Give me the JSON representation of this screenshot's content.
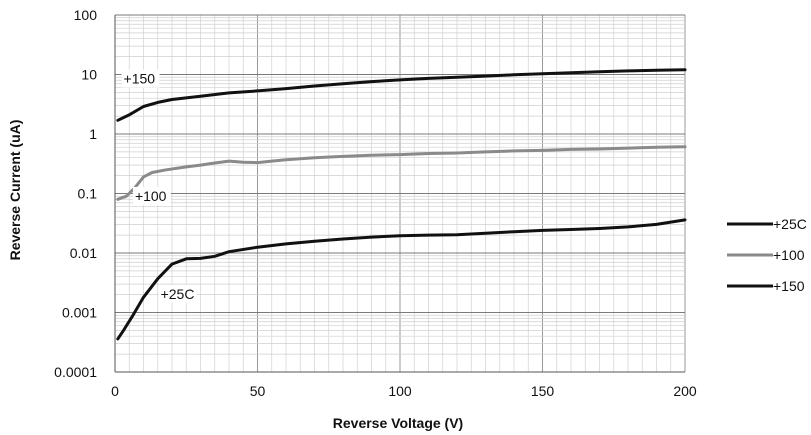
{
  "chart_data": {
    "type": "line",
    "xlabel": "Reverse Voltage (V)",
    "ylabel": "Reverse Current (uA)",
    "x_scale": "linear",
    "y_scale": "log",
    "xlim": [
      0,
      200
    ],
    "ylim": [
      0.0001,
      100
    ],
    "x_ticks": [
      "0",
      "50",
      "100",
      "150",
      "200"
    ],
    "y_ticks": [
      "0.0001",
      "0.001",
      "0.01",
      "0.1",
      "1",
      "10",
      "100"
    ],
    "grid": true,
    "legend_position": "right",
    "series": [
      {
        "name": "+25C",
        "color": "#111111",
        "points": [
          [
            1,
            0.00036
          ],
          [
            3,
            0.0005
          ],
          [
            6,
            0.00085
          ],
          [
            10,
            0.0018
          ],
          [
            15,
            0.0037
          ],
          [
            20,
            0.0065
          ],
          [
            25,
            0.008
          ],
          [
            30,
            0.0081
          ],
          [
            35,
            0.0088
          ],
          [
            40,
            0.0105
          ],
          [
            50,
            0.0125
          ],
          [
            60,
            0.0142
          ],
          [
            70,
            0.0158
          ],
          [
            80,
            0.0172
          ],
          [
            90,
            0.0185
          ],
          [
            100,
            0.0195
          ],
          [
            110,
            0.02
          ],
          [
            120,
            0.0203
          ],
          [
            130,
            0.0215
          ],
          [
            140,
            0.0228
          ],
          [
            150,
            0.024
          ],
          [
            160,
            0.0248
          ],
          [
            170,
            0.0258
          ],
          [
            180,
            0.0275
          ],
          [
            190,
            0.0302
          ],
          [
            200,
            0.036
          ]
        ]
      },
      {
        "name": "+100",
        "color": "#8a8a8a",
        "points": [
          [
            1,
            0.08
          ],
          [
            4,
            0.09
          ],
          [
            7,
            0.125
          ],
          [
            10,
            0.19
          ],
          [
            13,
            0.225
          ],
          [
            18,
            0.25
          ],
          [
            25,
            0.28
          ],
          [
            30,
            0.3
          ],
          [
            35,
            0.325
          ],
          [
            40,
            0.35
          ],
          [
            45,
            0.335
          ],
          [
            50,
            0.33
          ],
          [
            55,
            0.35
          ],
          [
            60,
            0.37
          ],
          [
            70,
            0.4
          ],
          [
            80,
            0.42
          ],
          [
            90,
            0.44
          ],
          [
            100,
            0.45
          ],
          [
            110,
            0.47
          ],
          [
            120,
            0.48
          ],
          [
            130,
            0.5
          ],
          [
            140,
            0.52
          ],
          [
            150,
            0.53
          ],
          [
            160,
            0.55
          ],
          [
            170,
            0.56
          ],
          [
            180,
            0.58
          ],
          [
            190,
            0.6
          ],
          [
            200,
            0.61
          ]
        ]
      },
      {
        "name": "+150",
        "color": "#111111",
        "points": [
          [
            1,
            1.7
          ],
          [
            5,
            2.1
          ],
          [
            10,
            2.9
          ],
          [
            15,
            3.4
          ],
          [
            20,
            3.8
          ],
          [
            30,
            4.3
          ],
          [
            40,
            4.9
          ],
          [
            50,
            5.3
          ],
          [
            60,
            5.8
          ],
          [
            70,
            6.4
          ],
          [
            80,
            7.0
          ],
          [
            90,
            7.6
          ],
          [
            100,
            8.1
          ],
          [
            110,
            8.6
          ],
          [
            120,
            9.0
          ],
          [
            130,
            9.4
          ],
          [
            140,
            9.9
          ],
          [
            150,
            10.3
          ],
          [
            160,
            10.7
          ],
          [
            170,
            11.1
          ],
          [
            180,
            11.5
          ],
          [
            190,
            11.8
          ],
          [
            200,
            12.0
          ]
        ]
      }
    ],
    "annotations": [
      {
        "text": "+150",
        "x": 3,
        "y": 7.0
      },
      {
        "text": "+100",
        "x": 7,
        "y": 0.075
      },
      {
        "text": "+25C",
        "x": 16,
        "y": 0.0017
      }
    ]
  }
}
